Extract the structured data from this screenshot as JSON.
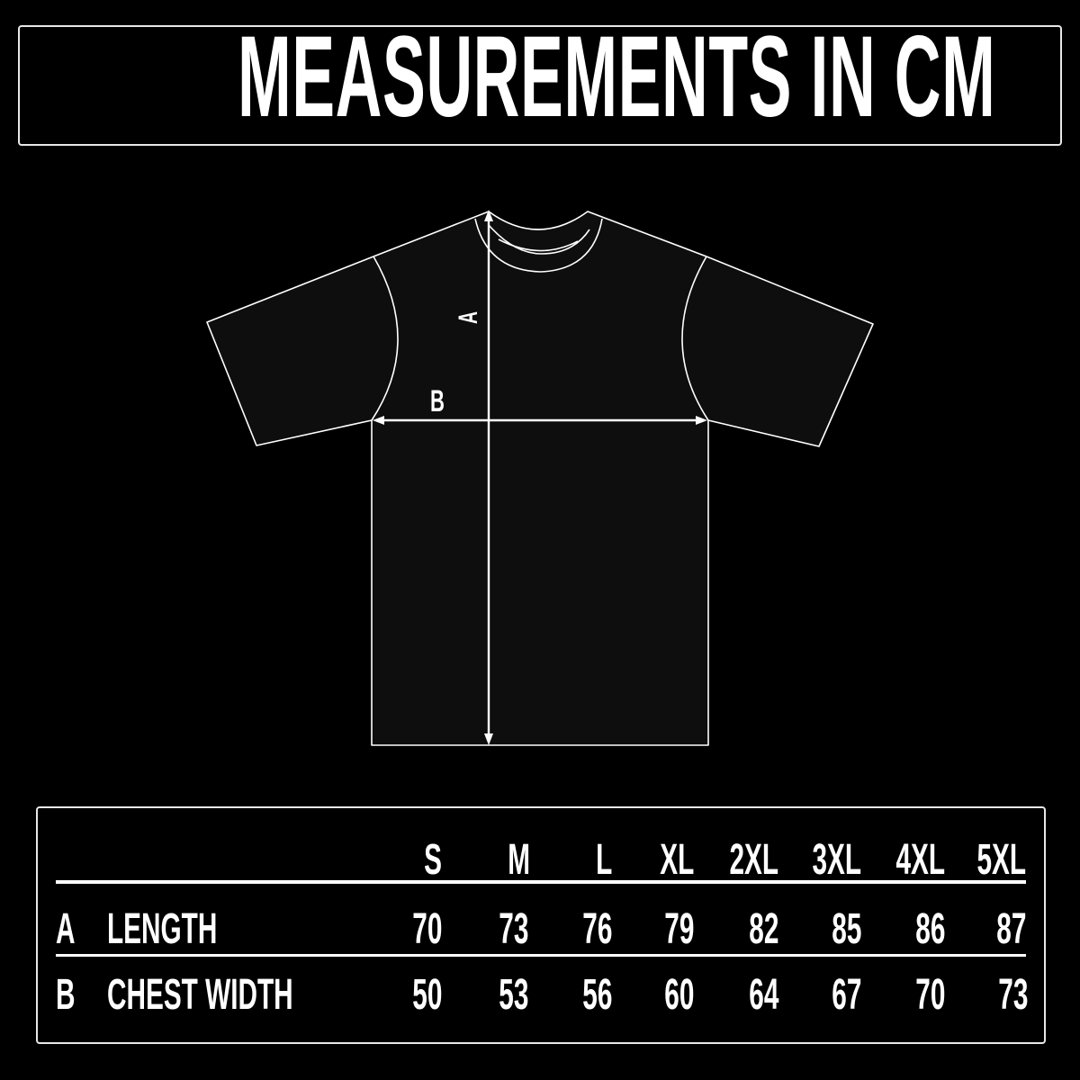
{
  "title": "MEASUREMENTS IN CM",
  "diagram": {
    "label_a": "A",
    "label_b": "B"
  },
  "table": {
    "sizes": [
      "S",
      "M",
      "L",
      "XL",
      "2XL",
      "3XL",
      "4XL",
      "5XL"
    ],
    "rows": [
      {
        "key": "A",
        "label": "LENGTH",
        "values": [
          "70",
          "73",
          "76",
          "79",
          "82",
          "85",
          "86",
          "87"
        ]
      },
      {
        "key": "B",
        "label": "CHEST WIDTH",
        "values": [
          "50",
          "53",
          "56",
          "60",
          "64",
          "67",
          "70",
          "73"
        ]
      }
    ]
  },
  "colors": {
    "background": "#000000",
    "shirt_fill": "#0e0e0e",
    "line": "#ffffff"
  }
}
